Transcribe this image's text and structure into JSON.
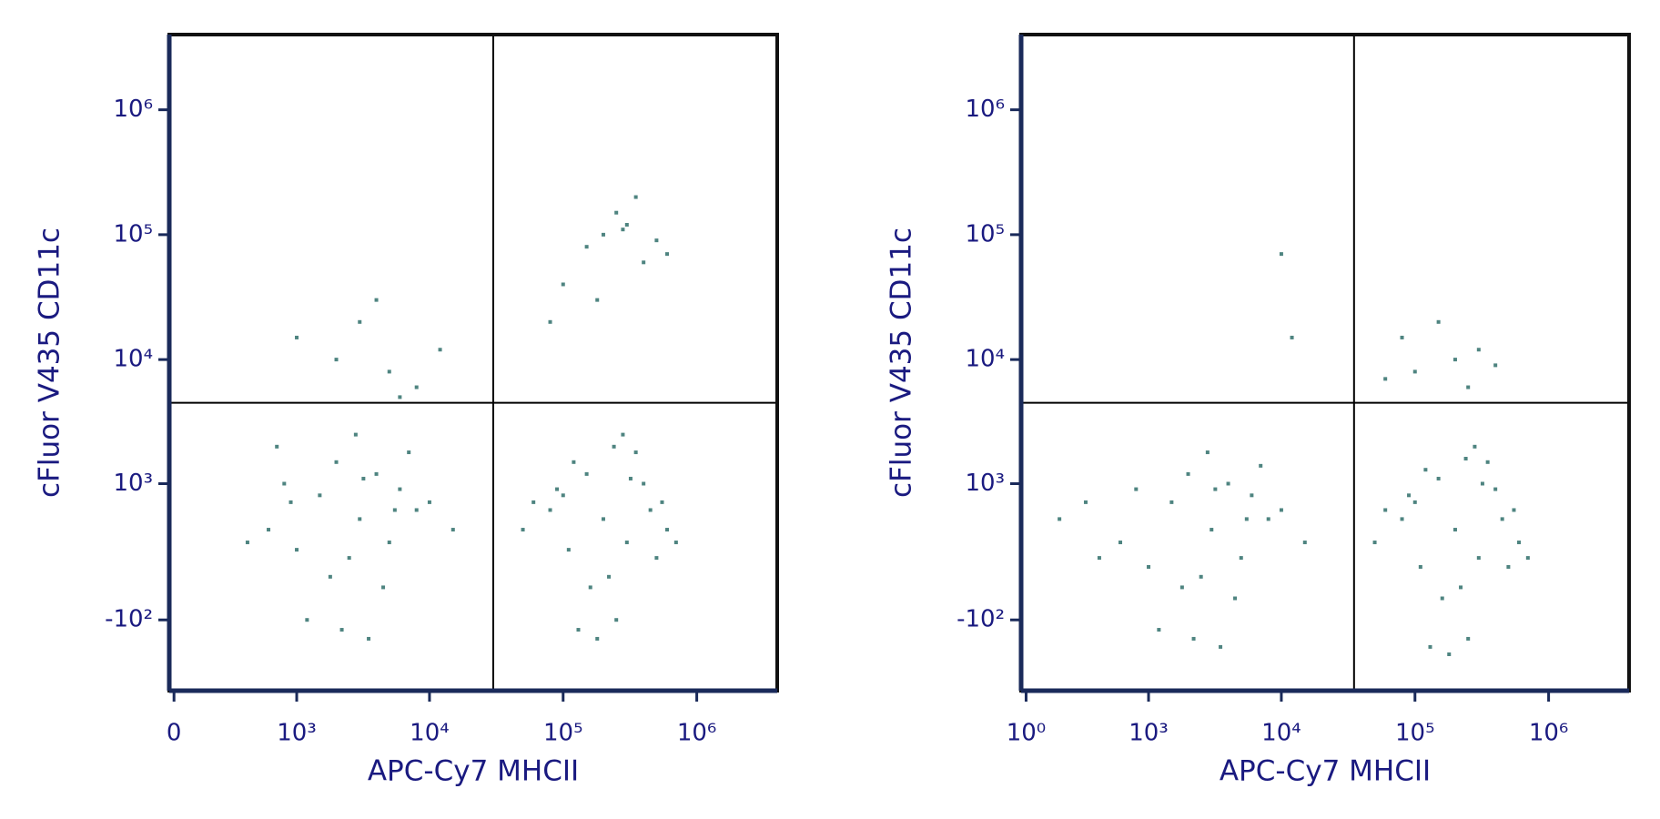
{
  "chart_data": [
    {
      "type": "scatter",
      "x_label": "APC-Cy7 MHCII",
      "y_label": "cFluor V435 CD11c",
      "color": "#4e8480",
      "xlim": [
        -20,
        4000000
      ],
      "ylim": [
        -650,
        4000000
      ],
      "xticks": [
        0,
        {
          "value": 1000,
          "label": "10³"
        },
        {
          "value": 10000,
          "label": "10⁴"
        },
        {
          "value": 100000,
          "label": "10⁵"
        },
        {
          "value": 1000000,
          "label": "10⁶"
        }
      ],
      "yticks": [
        {
          "value": -100,
          "label": "-10²"
        },
        {
          "value": 1000,
          "label": "10³"
        },
        {
          "value": 10000,
          "label": "10⁴"
        },
        {
          "value": 100000,
          "label": "10⁵"
        },
        {
          "value": 1000000,
          "label": "10⁶"
        }
      ],
      "gates": {
        "x": 30000,
        "y": 4500
      },
      "x": [
        3000,
        1500,
        5000,
        800,
        2500,
        8000,
        4000,
        1200,
        600,
        2000,
        10000,
        3500,
        6000,
        1800,
        700,
        15000,
        2800,
        4500,
        900,
        3200,
        400,
        7000,
        2200,
        5500,
        1000,
        200000,
        100000,
        300000,
        150000,
        500000,
        80000,
        250000,
        400000,
        120000,
        600000,
        180000,
        60000,
        350000,
        220000,
        90000,
        700000,
        280000,
        130000,
        450000,
        160000,
        320000,
        50000,
        240000,
        550000,
        110000,
        200000,
        300000,
        150000,
        400000,
        250000,
        500000,
        100000,
        350000,
        180000,
        600000,
        80000,
        280000,
        2000,
        5000,
        3000,
        8000,
        1000,
        12000,
        4000,
        6000
      ],
      "y": [
        500,
        800,
        300,
        1000,
        200,
        600,
        1200,
        -100,
        400,
        1500,
        700,
        -200,
        900,
        100,
        2000,
        400,
        2500,
        50,
        700,
        1100,
        300,
        1800,
        -150,
        600,
        250,
        500,
        800,
        300,
        1200,
        200,
        600,
        -100,
        1000,
        1500,
        400,
        -200,
        700,
        1800,
        100,
        900,
        300,
        2500,
        -150,
        600,
        50,
        1100,
        400,
        2000,
        700,
        250,
        100000,
        120000,
        80000,
        60000,
        150000,
        90000,
        40000,
        200000,
        30000,
        70000,
        20000,
        110000,
        10000,
        8000,
        20000,
        6000,
        15000,
        12000,
        30000,
        5000
      ]
    },
    {
      "type": "scatter",
      "x_label": "APC-Cy7 MHCII",
      "y_label": "cFluor V435 CD11c",
      "color": "#4e8480",
      "xlim": [
        -20,
        4000000
      ],
      "ylim": [
        -650,
        4000000
      ],
      "xticks": [
        {
          "value": 1,
          "label": "10⁰"
        },
        {
          "value": 1000,
          "label": "10³"
        },
        {
          "value": 10000,
          "label": "10⁴"
        },
        {
          "value": 100000,
          "label": "10⁵"
        },
        {
          "value": 1000000,
          "label": "10⁶"
        }
      ],
      "yticks": [
        {
          "value": -100,
          "label": "-10²"
        },
        {
          "value": 1000,
          "label": "10³"
        },
        {
          "value": 10000,
          "label": "10⁴"
        },
        {
          "value": 100000,
          "label": "10⁵"
        },
        {
          "value": 1000000,
          "label": "10⁶"
        }
      ],
      "gates": {
        "x": 35000,
        "y": 4500
      },
      "x": [
        3000,
        1500,
        5000,
        800,
        2500,
        8000,
        4000,
        1200,
        600,
        2000,
        10000,
        3500,
        6000,
        1800,
        300,
        15000,
        2800,
        4500,
        150,
        3200,
        400,
        7000,
        2200,
        5500,
        1000,
        200000,
        100000,
        300000,
        150000,
        500000,
        80000,
        250000,
        400000,
        120000,
        600000,
        180000,
        60000,
        350000,
        220000,
        90000,
        700000,
        280000,
        130000,
        450000,
        160000,
        320000,
        50000,
        240000,
        550000,
        110000,
        100000,
        200000,
        250000,
        80000,
        300000,
        60000,
        150000,
        400000,
        10000,
        12000
      ],
      "y": [
        400,
        700,
        200,
        900,
        100,
        500,
        1000,
        -150,
        300,
        1200,
        600,
        -250,
        800,
        50,
        700,
        300,
        1800,
        0,
        500,
        900,
        200,
        1400,
        -200,
        500,
        150,
        400,
        700,
        200,
        1100,
        150,
        500,
        -200,
        900,
        1300,
        300,
        -300,
        600,
        1500,
        50,
        800,
        200,
        2000,
        -250,
        500,
        0,
        1000,
        300,
        1600,
        600,
        150,
        8000,
        10000,
        6000,
        15000,
        12000,
        7000,
        20000,
        9000,
        70000,
        15000
      ]
    }
  ]
}
